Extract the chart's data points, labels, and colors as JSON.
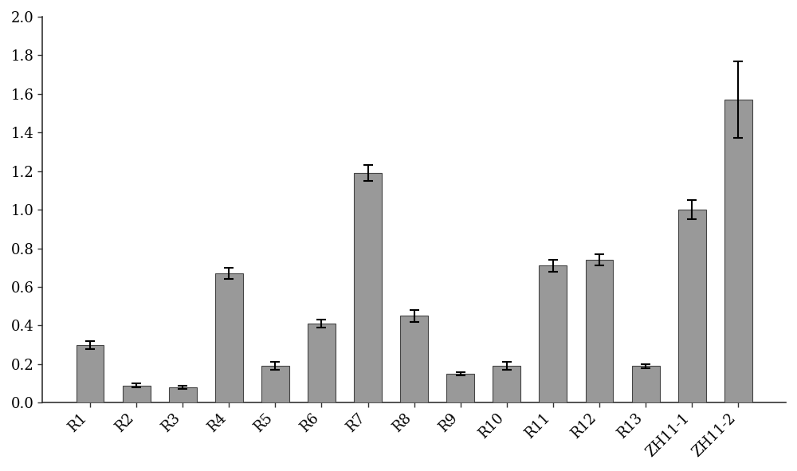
{
  "categories": [
    "R1",
    "R2",
    "R3",
    "R4",
    "R5",
    "R6",
    "R7",
    "R8",
    "R9",
    "R10",
    "R11",
    "R12",
    "R13",
    "ZH11-1",
    "ZH11-2"
  ],
  "values": [
    0.3,
    0.09,
    0.08,
    0.67,
    0.19,
    0.41,
    1.19,
    0.45,
    0.15,
    0.19,
    0.71,
    0.74,
    0.19,
    1.0,
    1.57
  ],
  "errors": [
    0.02,
    0.01,
    0.01,
    0.03,
    0.02,
    0.02,
    0.04,
    0.03,
    0.01,
    0.02,
    0.03,
    0.03,
    0.01,
    0.05,
    0.2
  ],
  "bar_color": "#999999",
  "bar_edgecolor": "#444444",
  "background_color": "#ffffff",
  "ylim": [
    0,
    2.0
  ],
  "yticks": [
    0,
    0.2,
    0.4,
    0.6,
    0.8,
    1.0,
    1.2,
    1.4,
    1.6,
    1.8,
    2.0
  ],
  "xlabel": "",
  "ylabel": "",
  "title": "",
  "tick_fontsize": 13,
  "label_fontsize": 13,
  "bar_width": 0.6,
  "elinewidth": 1.5,
  "ecapsize": 4,
  "ecapthick": 1.5
}
